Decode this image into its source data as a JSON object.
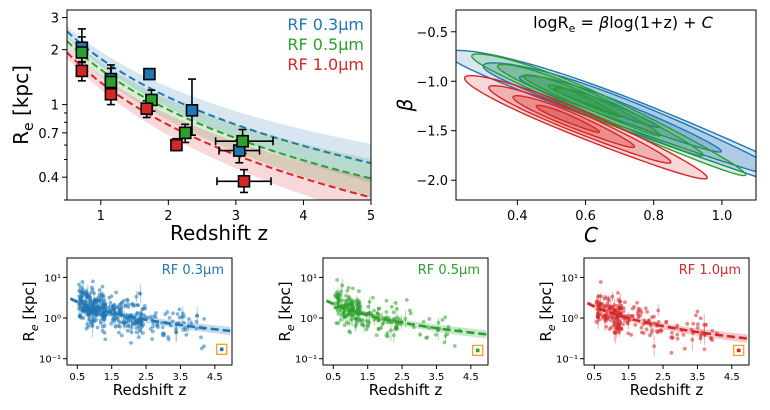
{
  "colors": {
    "rf03": "#1f77b4",
    "rf05": "#2ca02c",
    "rf10": "#d62728",
    "highlight": "#ff9f1c"
  },
  "chart_data": [
    {
      "id": "main",
      "type": "scatter",
      "xlabel": "Redshift z",
      "ylabel": "R_e [kpc]",
      "ylabel_main": "R",
      "ylabel_sub": "e",
      "ylabel_rest": " [kpc]",
      "xlim": [
        0.5,
        5
      ],
      "ylim": [
        0.3,
        3.3
      ],
      "yscale": "log",
      "xticks": [
        1,
        2,
        3,
        4,
        5
      ],
      "xtick_labels": [
        "1",
        "2",
        "3",
        "4",
        "5"
      ],
      "yticks": [
        0.4,
        0.7,
        1,
        2,
        3
      ],
      "ytick_labels": [
        "0.4",
        "0.7",
        "1",
        "2",
        "3"
      ],
      "legend": [
        "RF 0.3μm",
        "RF 0.5μm",
        "RF 1.0μm"
      ],
      "legend_position": "top-right",
      "series": [
        {
          "name": "RF 0.3μm",
          "color_key": "rf03",
          "fit": {
            "A": 4.1,
            "b": -1.2
          },
          "points": [
            {
              "x": 0.72,
              "y": 2.05,
              "ylo": 1.7,
              "yhi": 2.6
            },
            {
              "x": 1.15,
              "y": 1.38,
              "ylo": 1.15,
              "yhi": 1.65
            },
            {
              "x": 1.72,
              "y": 1.47
            },
            {
              "x": 2.35,
              "y": 0.93,
              "ylo": 0.68,
              "yhi": 1.38
            },
            {
              "x": 3.05,
              "y": 0.56,
              "ylo": 0.48,
              "yhi": 0.64,
              "xlo": 2.75,
              "xhi": 3.35
            }
          ]
        },
        {
          "name": "RF 0.5μm",
          "color_key": "rf05",
          "fit": {
            "A": 3.7,
            "b": -1.25
          },
          "points": [
            {
              "x": 0.72,
              "y": 1.93,
              "ylo": 1.6,
              "yhi": 2.35
            },
            {
              "x": 1.15,
              "y": 1.33,
              "ylo": 1.12,
              "yhi": 1.58
            },
            {
              "x": 1.75,
              "y": 1.06,
              "ylo": 0.92,
              "yhi": 1.2
            },
            {
              "x": 2.25,
              "y": 0.7,
              "ylo": 0.62,
              "yhi": 0.78
            },
            {
              "x": 3.1,
              "y": 0.63,
              "ylo": 0.54,
              "yhi": 0.73,
              "xlo": 2.7,
              "xhi": 3.55
            }
          ]
        },
        {
          "name": "RF 1.0μm",
          "color_key": "rf10",
          "fit": {
            "A": 3.3,
            "b": -1.32
          },
          "points": [
            {
              "x": 0.72,
              "y": 1.53,
              "ylo": 1.35,
              "yhi": 1.72
            },
            {
              "x": 1.15,
              "y": 1.14,
              "ylo": 1.0,
              "yhi": 1.3
            },
            {
              "x": 1.68,
              "y": 0.95,
              "ylo": 0.85,
              "yhi": 1.05
            },
            {
              "x": 2.12,
              "y": 0.6,
              "ylo": 0.56,
              "yhi": 0.65
            },
            {
              "x": 3.12,
              "y": 0.38,
              "ylo": 0.33,
              "yhi": 0.44,
              "xlo": 2.72,
              "xhi": 3.52
            }
          ]
        }
      ]
    },
    {
      "id": "contour",
      "type": "contour",
      "title": "logR_e = βlog(1+z) + C",
      "title_parts": [
        "logR",
        "e",
        " = ",
        "β",
        "log(1+z) + ",
        "C"
      ],
      "xlabel": "C",
      "ylabel": "β",
      "xlim": [
        0.22,
        1.1
      ],
      "ylim": [
        -2.2,
        -0.28
      ],
      "xticks": [
        0.4,
        0.6,
        0.8,
        1.0
      ],
      "xtick_labels": [
        "0.4",
        "0.6",
        "0.8",
        "1.0"
      ],
      "yticks": [
        -2.0,
        -1.5,
        -1.0,
        -0.5
      ],
      "ytick_labels": [
        "−2.0",
        "−1.5",
        "−1.0",
        "−0.5"
      ],
      "posteriors": [
        {
          "name": "RF 0.3μm",
          "color_key": "rf03",
          "center": [
            0.62,
            -1.2
          ],
          "u": [
            0.5,
            0.65
          ],
          "w": [
            0.07,
            0.06,
            0.04,
            0.02
          ],
          "skew": [
            0.08,
            -0.15
          ]
        },
        {
          "name": "RF 0.5μm",
          "color_key": "rf05",
          "center": [
            0.57,
            -1.15
          ],
          "u": [
            0.34,
            0.52
          ],
          "w": [
            0.05,
            0.04,
            0.028,
            0.015
          ],
          "skew": [
            0.04,
            -0.1
          ]
        },
        {
          "name": "RF 1.0μm",
          "color_key": "rf10",
          "center": [
            0.53,
            -1.35
          ],
          "u": [
            0.3,
            0.44
          ],
          "w": [
            0.055,
            0.042,
            0.03,
            0.016
          ],
          "skew": [
            0.02,
            -0.04
          ]
        }
      ]
    },
    {
      "id": "rf03",
      "type": "scatter",
      "label": "RF 0.3μm",
      "color_key": "rf03",
      "xlabel": "Redshift z",
      "ylabel_main": "R",
      "ylabel_sub": "e",
      "ylabel_rest": " [kpc]",
      "xlim": [
        0.2,
        5.0
      ],
      "ylim": [
        0.07,
        30
      ],
      "yscale": "log",
      "xticks": [
        0.5,
        1.5,
        2.5,
        3.5,
        4.5
      ],
      "xtick_labels": [
        "0.5",
        "1.5",
        "2.5",
        "3.5",
        "4.5"
      ],
      "ytick_labels": [
        "10⁻¹",
        "10⁰",
        "10¹"
      ],
      "fit": {
        "A": 4.1,
        "b": -1.2
      },
      "highlight": {
        "x": 4.7,
        "y": 0.17
      },
      "seed": 11,
      "n": 420
    },
    {
      "id": "rf05",
      "type": "scatter",
      "label": "RF 0.5μm",
      "color_key": "rf05",
      "xlabel": "Redshift z",
      "ylabel_main": "R",
      "ylabel_sub": "e",
      "ylabel_rest": " [kpc]",
      "xlim": [
        0.2,
        5.0
      ],
      "ylim": [
        0.07,
        30
      ],
      "yscale": "log",
      "xticks": [
        0.5,
        1.5,
        2.5,
        3.5,
        4.5
      ],
      "xtick_labels": [
        "0.5",
        "1.5",
        "2.5",
        "3.5",
        "4.5"
      ],
      "ytick_labels": [
        "10⁻¹",
        "10⁰",
        "10¹"
      ],
      "fit": {
        "A": 3.7,
        "b": -1.25
      },
      "highlight": {
        "x": 4.7,
        "y": 0.16
      },
      "seed": 23,
      "n": 230
    },
    {
      "id": "rf10",
      "type": "scatter",
      "label": "RF 1.0μm",
      "color_key": "rf10",
      "xlabel": "Redshift z",
      "ylabel_main": "R",
      "ylabel_sub": "e",
      "ylabel_rest": " [kpc]",
      "xlim": [
        0.2,
        5.0
      ],
      "ylim": [
        0.07,
        30
      ],
      "yscale": "log",
      "xticks": [
        0.5,
        1.5,
        2.5,
        3.5,
        4.5
      ],
      "xtick_labels": [
        "0.5",
        "1.5",
        "2.5",
        "3.5",
        "4.5"
      ],
      "ytick_labels": [
        "10⁻¹",
        "10⁰",
        "10¹"
      ],
      "fit": {
        "A": 3.3,
        "b": -1.32
      },
      "highlight": {
        "x": 4.7,
        "y": 0.16
      },
      "seed": 37,
      "n": 230
    }
  ]
}
